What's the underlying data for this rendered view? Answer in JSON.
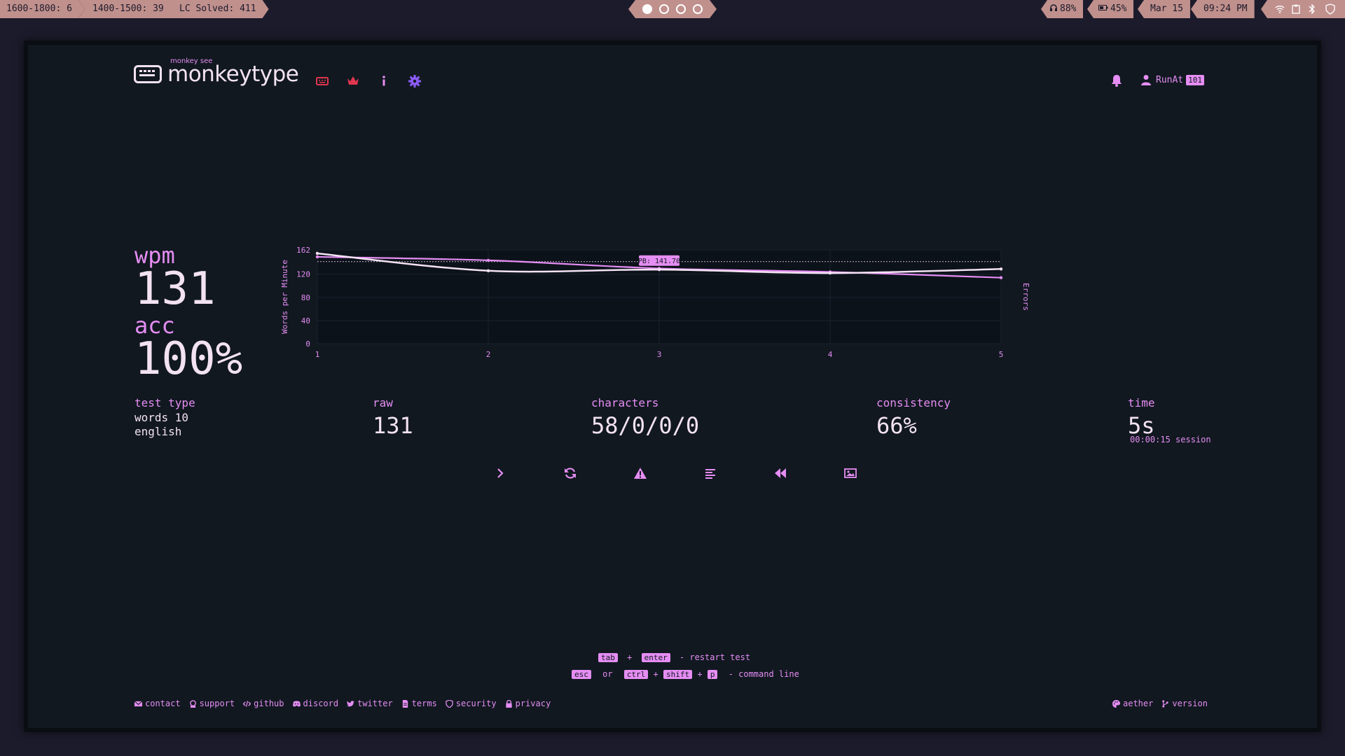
{
  "system_bar": {
    "left_segments": [
      "1600-1800: 6",
      "1400-1500: 39",
      "LC Solved: 411"
    ],
    "workspaces": [
      {
        "active": true
      },
      {
        "active": false
      },
      {
        "active": false
      },
      {
        "active": false
      }
    ],
    "headphones": "88%",
    "battery": "45%",
    "date": "Mar 15",
    "time": "09:24 PM"
  },
  "header": {
    "logo_sub": "monkey see",
    "logo_title": "monkeytype",
    "user_name": "RunAt",
    "user_level": "101"
  },
  "results": {
    "wpm_label": "wpm",
    "wpm_value": "131",
    "acc_label": "acc",
    "acc_value": "100%",
    "test_type_label": "test type",
    "test_type_line1": "words 10",
    "test_type_line2": "english",
    "raw_label": "raw",
    "raw_value": "131",
    "characters_label": "characters",
    "characters_value": "58/0/0/0",
    "consistency_label": "consistency",
    "consistency_value": "66%",
    "time_label": "time",
    "time_value": "5s",
    "session": "00:00:15 session"
  },
  "chart_data": {
    "type": "line",
    "x": [
      1,
      2,
      3,
      4,
      5
    ],
    "ylabel": "Words per Minute",
    "y2label": "Errors",
    "yticks": [
      0,
      40,
      80,
      120,
      162
    ],
    "ylim": [
      0,
      162
    ],
    "pb_label": "PB: 141.70",
    "pb_value": 141.7,
    "series": [
      {
        "color": "#f3e2f3",
        "values": [
          156,
          126,
          128,
          122,
          129
        ]
      },
      {
        "color": "#e58df3",
        "values": [
          150,
          144,
          130,
          124,
          114
        ]
      }
    ]
  },
  "hints": {
    "line1_keys": [
      "tab",
      "enter"
    ],
    "line1_plus": "+",
    "line1_text": "- restart test",
    "line2_keys": [
      "esc",
      "ctrl",
      "shift",
      "p"
    ],
    "line2_or": "or",
    "line2_plus": "+",
    "line2_text": "- command line"
  },
  "footer": {
    "left": [
      "contact",
      "support",
      "github",
      "discord",
      "twitter",
      "terms",
      "security",
      "privacy"
    ],
    "right": [
      "aether",
      "version"
    ]
  },
  "colors": {
    "accent": "#e58df3",
    "text": "#f3e2f3",
    "bg": "#111820",
    "bar": "#c0908d",
    "nav_red": "#e0364f"
  }
}
